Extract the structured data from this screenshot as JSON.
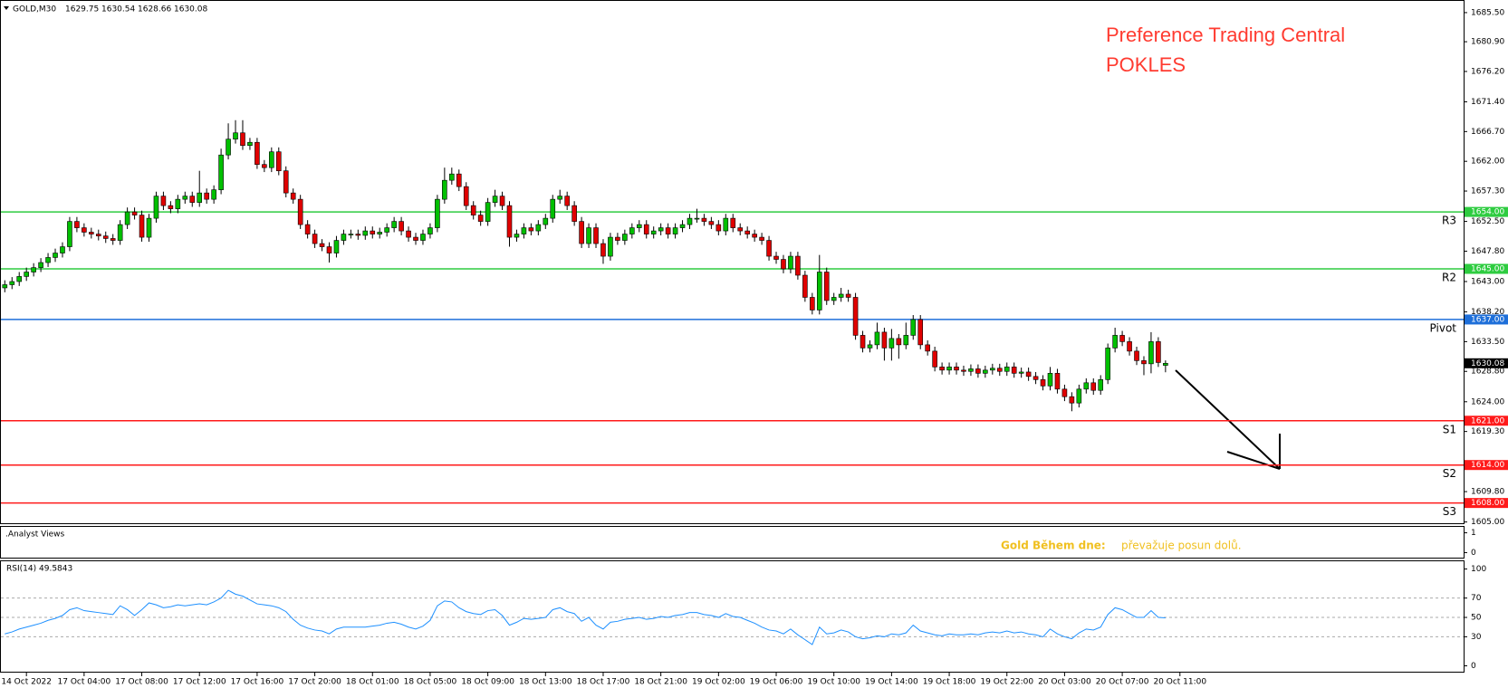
{
  "chart_data": {
    "type": "candlestick",
    "symbol": "GOLD,M30",
    "title": "Preference Trading Central",
    "subtitle": "POKLES",
    "up_color": "#00c000",
    "down_color": "#e00000",
    "open": [
      1642,
      1642.5,
      1643,
      1643.8,
      1644.5,
      1645.2,
      1646,
      1646.8,
      1647.5,
      1648.5,
      1652.5,
      1651.5,
      1650.8,
      1650.5,
      1650.2,
      1649.8,
      1649.5,
      1652,
      1654,
      1653.5,
      1650,
      1653,
      1656.5,
      1655,
      1654.5,
      1656,
      1656.5,
      1655.5,
      1657,
      1656,
      1657.5,
      1663,
      1665.5,
      1666.5,
      1664.5,
      1665,
      1661.5,
      1661,
      1663.5,
      1660.5,
      1657,
      1656,
      1652,
      1650.5,
      1649,
      1648.5,
      1647.5,
      1649.5,
      1650.5,
      1650.5,
      1650.3,
      1651,
      1650.5,
      1650.8,
      1651.5,
      1652.5,
      1651,
      1650,
      1649.5,
      1650.5,
      1651.5,
      1656,
      1659,
      1660,
      1658,
      1655,
      1653.5,
      1652.5,
      1655.5,
      1656.5,
      1655,
      1650,
      1650.5,
      1651.5,
      1651,
      1652,
      1653,
      1656,
      1656.5,
      1655,
      1652.5,
      1649,
      1651.5,
      1649,
      1647,
      1650,
      1649.5,
      1650.5,
      1651.5,
      1652,
      1650.5,
      1651,
      1651.5,
      1650.5,
      1651.5,
      1652,
      1653,
      1653,
      1652.5,
      1652,
      1651,
      1653,
      1651.5,
      1651,
      1650.5,
      1650,
      1649.5,
      1647,
      1646.5,
      1645,
      1647,
      1644,
      1640.5,
      1638.5,
      1644.5,
      1640,
      1640.5,
      1641,
      1640.5,
      1634.5,
      1632.5,
      1633,
      1635,
      1632.5,
      1634,
      1633,
      1634.5,
      1637,
      1633,
      1632,
      1629.5,
      1629,
      1629.5,
      1629,
      1628.8,
      1629.2,
      1628.5,
      1629,
      1629.3,
      1628.8,
      1629.5,
      1628.5,
      1628.7,
      1628,
      1627.5,
      1626.5,
      1628.5,
      1626,
      1624.8,
      1623.8,
      1626,
      1627,
      1625.8,
      1627.5,
      1632.5,
      1634.5,
      1633.5,
      1632,
      1630.5,
      1630,
      1633.5,
      1629.75
    ],
    "high": [
      1643.2,
      1643.7,
      1644.5,
      1645.2,
      1645.9,
      1646.7,
      1647.5,
      1648.2,
      1649.2,
      1653.2,
      1653.2,
      1652.2,
      1651.5,
      1651.2,
      1650.9,
      1650.5,
      1652.7,
      1654.7,
      1654.7,
      1654.2,
      1653.7,
      1657.2,
      1657.2,
      1655.7,
      1656.7,
      1657.2,
      1657.2,
      1660.5,
      1657.7,
      1658.2,
      1664,
      1668,
      1668.5,
      1668.5,
      1665.7,
      1665.7,
      1662.2,
      1664.2,
      1664.2,
      1661.2,
      1657.7,
      1656.7,
      1652.7,
      1651.2,
      1649.7,
      1649.2,
      1650.2,
      1651.2,
      1651.2,
      1651.2,
      1651.7,
      1651.7,
      1651.5,
      1652.2,
      1653.2,
      1653.2,
      1651.7,
      1650.7,
      1651.2,
      1652.2,
      1656.7,
      1661,
      1661,
      1660.7,
      1658.7,
      1655.7,
      1654.2,
      1656.2,
      1657.5,
      1657.2,
      1655.7,
      1651.2,
      1652.2,
      1652.2,
      1652.7,
      1653.7,
      1656.7,
      1657.5,
      1657.2,
      1655.7,
      1653.2,
      1652.2,
      1652.2,
      1649.7,
      1650.7,
      1650.7,
      1651.2,
      1652.2,
      1652.7,
      1652.7,
      1651.7,
      1652.2,
      1652.2,
      1652.2,
      1652.7,
      1653.7,
      1654.5,
      1653.7,
      1653.2,
      1652.7,
      1653.7,
      1653.7,
      1652.2,
      1651.7,
      1651.2,
      1650.7,
      1650.2,
      1647.7,
      1647.2,
      1647.7,
      1647.7,
      1644.7,
      1641.2,
      1647.2,
      1645.2,
      1641.2,
      1642,
      1641.7,
      1641.2,
      1635.2,
      1633.7,
      1636.5,
      1635.7,
      1635.5,
      1634.7,
      1636.5,
      1637.7,
      1637.7,
      1633.7,
      1632.7,
      1630.2,
      1630.2,
      1630.2,
      1629.7,
      1629.9,
      1629.9,
      1629.7,
      1630,
      1630,
      1630.2,
      1630.2,
      1629.4,
      1629.4,
      1628.7,
      1628.2,
      1629.5,
      1629.2,
      1626.7,
      1625.5,
      1626.7,
      1627.7,
      1627.7,
      1628.2,
      1633.2,
      1635.7,
      1635.2,
      1634.2,
      1632.7,
      1631.2,
      1635,
      1634.2,
      1630.54
    ],
    "low": [
      1641.3,
      1641.8,
      1642.3,
      1643.1,
      1643.8,
      1644.5,
      1645.3,
      1646.1,
      1646.8,
      1647.8,
      1650.8,
      1650.1,
      1649.8,
      1649.5,
      1649.1,
      1648.8,
      1648.8,
      1651.3,
      1652.8,
      1649.3,
      1649.3,
      1652.3,
      1654.3,
      1653.8,
      1653.8,
      1655.3,
      1654.8,
      1654.8,
      1655.3,
      1655.3,
      1656.8,
      1662.3,
      1664.8,
      1663.8,
      1663.8,
      1660.8,
      1660.3,
      1660.3,
      1659.8,
      1656.3,
      1655.3,
      1651.3,
      1649.8,
      1648.3,
      1647.8,
      1646,
      1646.8,
      1648.8,
      1649.8,
      1649.6,
      1649.6,
      1649.8,
      1649.8,
      1650.1,
      1650.8,
      1650.3,
      1649.3,
      1648.8,
      1648.8,
      1649.8,
      1650.8,
      1655.3,
      1658.3,
      1657.3,
      1654.3,
      1652.8,
      1651.8,
      1651.8,
      1654.8,
      1654.3,
      1648.5,
      1649.3,
      1649.8,
      1650.3,
      1650.3,
      1651.3,
      1652.3,
      1655.3,
      1654.3,
      1651.8,
      1648.3,
      1648.3,
      1648.3,
      1645.8,
      1646.3,
      1648.8,
      1648.8,
      1649.8,
      1650.8,
      1649.8,
      1649.8,
      1650.3,
      1649.8,
      1649.8,
      1650.8,
      1651.3,
      1652.3,
      1651.8,
      1651.3,
      1650.3,
      1650.3,
      1650.8,
      1650.3,
      1649.8,
      1649.3,
      1648.8,
      1646.3,
      1645.8,
      1644.3,
      1644.3,
      1643.3,
      1639.8,
      1637.8,
      1637.8,
      1639.3,
      1639.3,
      1639.8,
      1639.8,
      1633.8,
      1631.8,
      1631.8,
      1632.3,
      1630.5,
      1630.5,
      1630.8,
      1632.3,
      1633.8,
      1632.3,
      1631.3,
      1628.8,
      1628.3,
      1628.3,
      1628.3,
      1628.1,
      1628.1,
      1627.8,
      1627.8,
      1628.3,
      1628.1,
      1628.1,
      1627.8,
      1627.8,
      1627.3,
      1626.8,
      1625.8,
      1625.8,
      1625.3,
      1624.1,
      1622.5,
      1623.1,
      1625.3,
      1625.1,
      1625.1,
      1626.8,
      1631.8,
      1632.8,
      1631.3,
      1629.8,
      1628.2,
      1628.5,
      1629.5,
      1628.66
    ],
    "close": [
      1642.5,
      1643,
      1643.8,
      1644.5,
      1645.2,
      1646,
      1646.8,
      1647.5,
      1648.5,
      1652.5,
      1651.5,
      1650.8,
      1650.5,
      1650.2,
      1649.8,
      1649.5,
      1652,
      1654,
      1653.5,
      1650,
      1653,
      1656.5,
      1655,
      1654.5,
      1656,
      1656.5,
      1655.5,
      1657,
      1656,
      1657.5,
      1663,
      1665.5,
      1666.5,
      1664.5,
      1665,
      1661.5,
      1661,
      1663.5,
      1660.5,
      1657,
      1656,
      1652,
      1650.5,
      1649,
      1648.5,
      1647.5,
      1649.5,
      1650.5,
      1650.5,
      1650.3,
      1651,
      1650.5,
      1650.8,
      1651.5,
      1652.5,
      1651,
      1650,
      1649.5,
      1650.5,
      1651.5,
      1656,
      1659,
      1660,
      1658,
      1655,
      1653.5,
      1652.5,
      1655.5,
      1656.5,
      1655,
      1650,
      1650.5,
      1651.5,
      1651,
      1652,
      1653,
      1656,
      1656.5,
      1655,
      1652.5,
      1649,
      1651.5,
      1649,
      1647,
      1650,
      1649.5,
      1650.5,
      1651.5,
      1652,
      1650.5,
      1651,
      1651.5,
      1650.5,
      1651.5,
      1652,
      1653,
      1653,
      1652.5,
      1652,
      1651,
      1653,
      1651.5,
      1651,
      1650.5,
      1650,
      1649.5,
      1647,
      1646.5,
      1645,
      1647,
      1644,
      1640.5,
      1638.5,
      1644.5,
      1640,
      1640.5,
      1641,
      1640.5,
      1634.5,
      1632.5,
      1633,
      1635,
      1632.5,
      1634,
      1633,
      1634.5,
      1637,
      1633,
      1632,
      1629.5,
      1629,
      1629.5,
      1629,
      1628.8,
      1629.2,
      1628.5,
      1629,
      1629.3,
      1628.8,
      1629.5,
      1628.5,
      1628.7,
      1628,
      1627.5,
      1626.5,
      1628.5,
      1626,
      1624.8,
      1623.8,
      1626,
      1627,
      1625.8,
      1627.5,
      1632.5,
      1634.5,
      1633.5,
      1632,
      1630.5,
      1630,
      1633.5,
      1630.2,
      1630.08
    ],
    "ylim": [
      1604.8,
      1687.35
    ],
    "yticks": [
      {
        "value": 1685.5,
        "label": "1685.50"
      },
      {
        "value": 1680.9,
        "label": "1680.90"
      },
      {
        "value": 1676.2,
        "label": "1676.20"
      },
      {
        "value": 1671.4,
        "label": "1671.40"
      },
      {
        "value": 1666.7,
        "label": "1666.70"
      },
      {
        "value": 1662,
        "label": "1662.00"
      },
      {
        "value": 1657.3,
        "label": "1657.30"
      },
      {
        "value": 1652.5,
        "label": "1652.50"
      },
      {
        "value": 1647.8,
        "label": "1647.80"
      },
      {
        "value": 1643,
        "label": "1643.00"
      },
      {
        "value": 1638.2,
        "label": "1638.20"
      },
      {
        "value": 1633.5,
        "label": "1633.50"
      },
      {
        "value": 1628.8,
        "label": "1628.80"
      },
      {
        "value": 1624,
        "label": "1624.00"
      },
      {
        "value": 1619.3,
        "label": "1619.30"
      },
      {
        "value": 1609.8,
        "label": "1609.80"
      },
      {
        "value": 1605,
        "label": "1605.00"
      }
    ],
    "xticks": [
      {
        "value": 3,
        "label": "14 Oct 2022"
      },
      {
        "value": 11,
        "label": "17 Oct 04:00"
      },
      {
        "value": 19,
        "label": "17 Oct 08:00"
      },
      {
        "value": 27,
        "label": "17 Oct 12:00"
      },
      {
        "value": 35,
        "label": "17 Oct 16:00"
      },
      {
        "value": 43,
        "label": "17 Oct 20:00"
      },
      {
        "value": 51,
        "label": "18 Oct 01:00"
      },
      {
        "value": 59,
        "label": "18 Oct 05:00"
      },
      {
        "value": 67,
        "label": "18 Oct 09:00"
      },
      {
        "value": 75,
        "label": "18 Oct 13:00"
      },
      {
        "value": 83,
        "label": "18 Oct 17:00"
      },
      {
        "value": 91,
        "label": "18 Oct 21:00"
      },
      {
        "value": 99,
        "label": "19 Oct 02:00"
      },
      {
        "value": 107,
        "label": "19 Oct 06:00"
      },
      {
        "value": 115,
        "label": "19 Oct 10:00"
      },
      {
        "value": 123,
        "label": "19 Oct 14:00"
      },
      {
        "value": 131,
        "label": "19 Oct 18:00"
      },
      {
        "value": 139,
        "label": "19 Oct 22:00"
      },
      {
        "value": 147,
        "label": "20 Oct 03:00"
      },
      {
        "value": 155,
        "label": "20 Oct 07:00"
      },
      {
        "value": 163,
        "label": "20 Oct 11:00"
      }
    ],
    "levels": [
      {
        "name": "R3",
        "value": {
          "value": 1654,
          "label": "1654.00"
        },
        "color": "#2ecc40"
      },
      {
        "name": "R2",
        "value": {
          "value": 1645,
          "label": "1645.00"
        },
        "color": "#2ecc40"
      },
      {
        "name": "Pivot",
        "value": {
          "value": 1637,
          "label": "1637.00"
        },
        "color": "#1e6fd9"
      },
      {
        "name": "S1",
        "value": {
          "value": 1621,
          "label": "1621.00"
        },
        "color": "#ff1a1a"
      },
      {
        "name": "S2",
        "value": {
          "value": 1614,
          "label": "1614.00"
        },
        "color": "#ff1a1a"
      },
      {
        "name": "S3",
        "value": {
          "value": 1608,
          "label": "1608.00"
        },
        "color": "#ff1a1a"
      }
    ],
    "analyst": {
      "name": ".Analyst Views",
      "ylim": [
        -0.3,
        1.3
      ],
      "yticks": [
        1,
        0
      ],
      "label": "Gold Během dne:",
      "text": "převažuje posun dolů."
    },
    "rsi": {
      "name": "RSI(14)",
      "color": "#1e90ff",
      "ylim": [
        -7,
        108
      ],
      "yticks": [
        100,
        70,
        50,
        30,
        0
      ],
      "values": [
        33,
        35,
        38,
        40,
        42,
        44,
        47,
        49,
        52,
        58,
        60,
        57,
        56,
        55,
        54,
        53,
        62,
        58,
        52,
        58,
        65,
        63,
        60,
        61,
        63,
        62,
        63,
        64,
        63,
        66,
        70,
        78,
        74,
        72,
        68,
        64,
        63,
        62,
        60,
        56,
        48,
        42,
        39,
        37,
        36,
        33,
        38,
        40,
        40,
        40,
        40,
        41,
        42,
        44,
        45,
        43,
        40,
        38,
        41,
        47,
        62,
        67,
        66,
        60,
        56,
        54,
        53,
        57,
        58,
        52,
        42,
        45,
        49,
        48,
        49,
        50,
        58,
        60,
        56,
        54,
        46,
        50,
        42,
        38,
        45,
        46,
        48,
        49,
        50,
        48,
        49,
        51,
        50,
        52,
        53,
        55,
        55,
        53,
        52,
        50,
        54,
        51,
        50,
        47,
        44,
        40,
        37,
        36,
        33,
        38,
        32,
        27,
        22,
        40,
        33,
        34,
        37,
        35,
        30,
        28,
        29,
        31,
        30,
        33,
        32,
        34,
        42,
        36,
        34,
        32,
        31,
        33,
        32,
        32,
        33,
        32,
        34,
        35,
        34,
        36,
        34,
        35,
        33,
        32,
        30,
        38,
        33,
        30,
        28,
        34,
        38,
        37,
        40,
        53,
        60,
        58,
        54,
        50,
        50,
        57,
        50,
        49.5843
      ]
    }
  }
}
